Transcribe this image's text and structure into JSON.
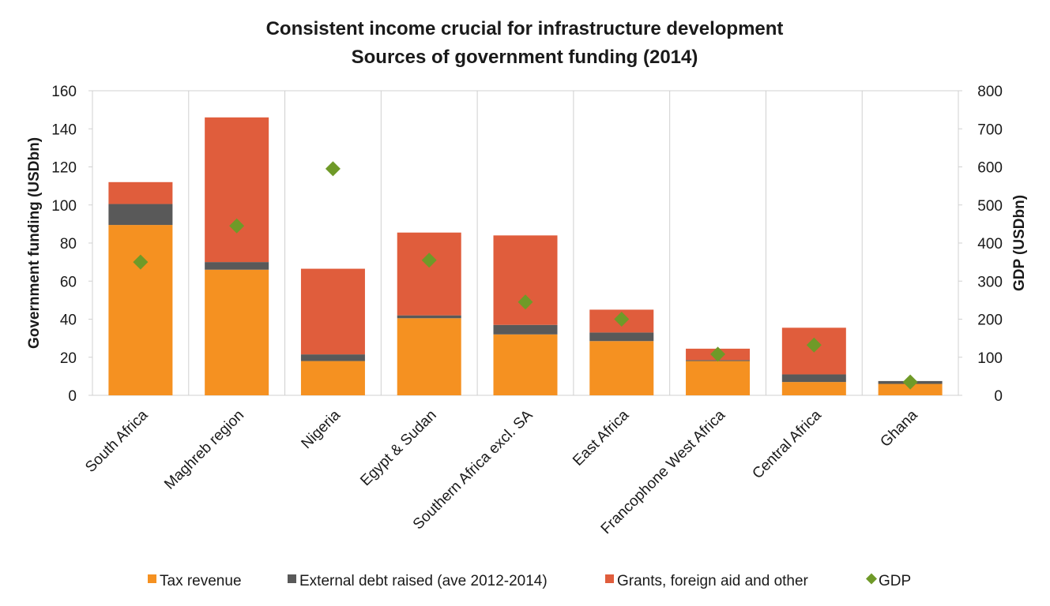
{
  "chart_data": {
    "type": "bar",
    "stacked": true,
    "title": "Consistent income crucial for infrastructure development",
    "subtitle": "Sources of government funding (2014)",
    "ylabel": "Government funding (USDbn)",
    "y2label": "GDP (USDbn)",
    "ylim": [
      0,
      160
    ],
    "y2lim": [
      0,
      800
    ],
    "yticks": [
      "0",
      "20",
      "40",
      "60",
      "80",
      "100",
      "120",
      "140",
      "160"
    ],
    "y2ticks": [
      "0",
      "100",
      "200",
      "300",
      "400",
      "500",
      "600",
      "700",
      "800"
    ],
    "categories": [
      "South Africa",
      "Maghreb region",
      "Nigeria",
      "Egypt & Sudan",
      "Southern Africa excl. SA",
      "East Africa",
      "Francophone West Africa",
      "Central Africa",
      "Ghana"
    ],
    "series": [
      {
        "name": "Tax revenue",
        "color": "#f59121",
        "values": [
          89.5,
          66,
          18,
          40.5,
          32,
          28.5,
          18,
          7,
          6
        ]
      },
      {
        "name": "External debt raised (ave 2012-2014)",
        "color": "#595959",
        "values": [
          11,
          4,
          3.5,
          1.5,
          5,
          4.5,
          0.5,
          4,
          1.5
        ]
      },
      {
        "name": "Grants, foreign aid and other",
        "color": "#e05d3c",
        "values": [
          11.5,
          76,
          45,
          43.5,
          47,
          12,
          6,
          24.5,
          0
        ]
      }
    ],
    "gdp_series": {
      "name": "GDP",
      "color": "#6f9a28",
      "values": [
        350,
        445,
        595,
        355,
        245,
        200,
        108,
        132,
        35
      ]
    },
    "grid": "vertical category separators",
    "legend": "bottom"
  }
}
